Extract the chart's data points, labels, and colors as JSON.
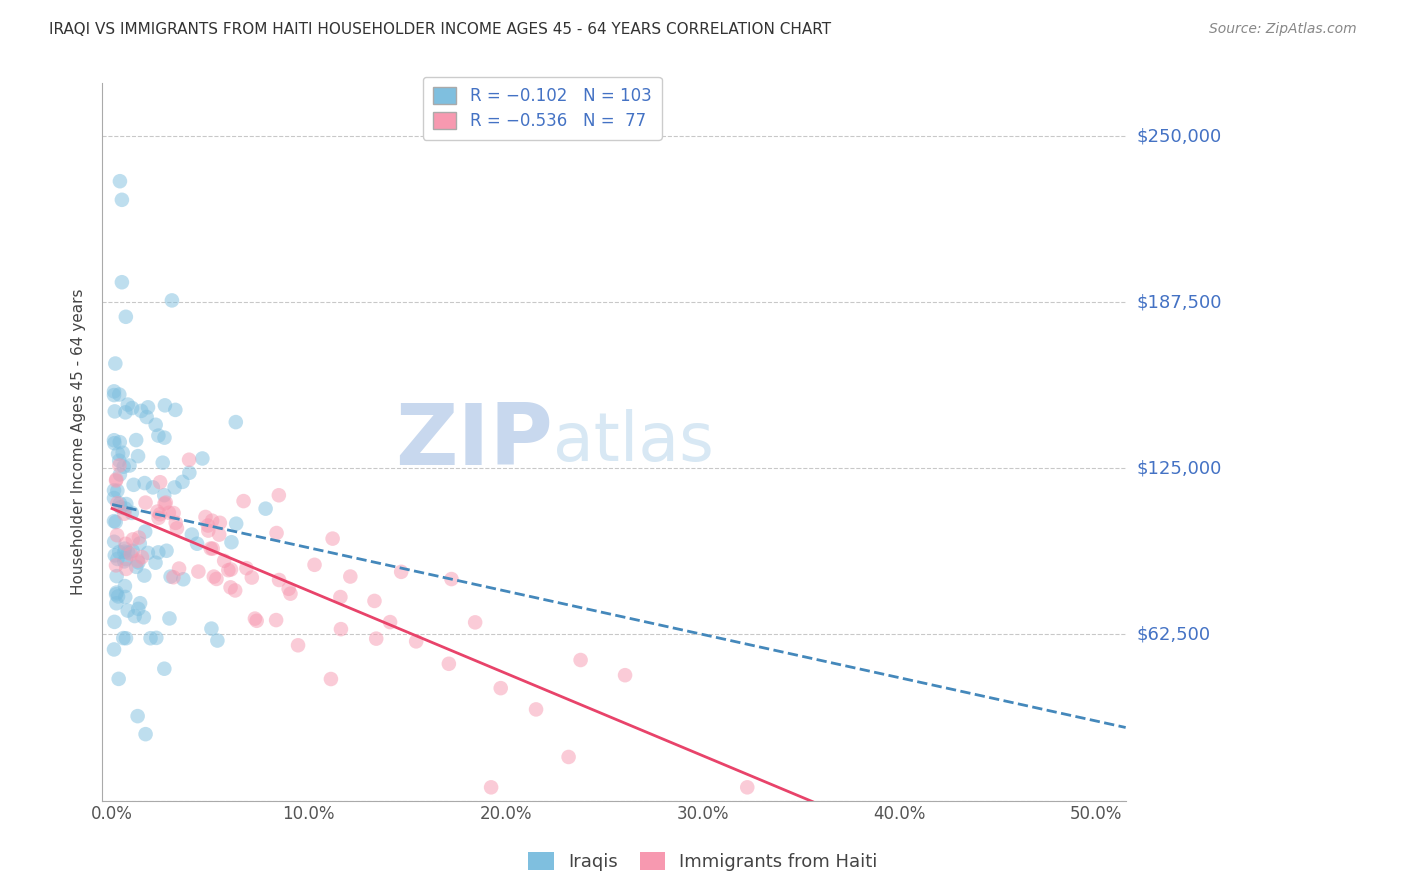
{
  "title": "IRAQI VS IMMIGRANTS FROM HAITI HOUSEHOLDER INCOME AGES 45 - 64 YEARS CORRELATION CHART",
  "source": "Source: ZipAtlas.com",
  "ylabel": "Householder Income Ages 45 - 64 years",
  "xlabel_ticks": [
    "0.0%",
    "10.0%",
    "20.0%",
    "30.0%",
    "40.0%",
    "50.0%"
  ],
  "xlabel_vals": [
    0.0,
    0.1,
    0.2,
    0.3,
    0.4,
    0.5
  ],
  "yticks": [
    0,
    62500,
    125000,
    187500,
    250000
  ],
  "ytick_labels": [
    "",
    "$62,500",
    "$125,000",
    "$187,500",
    "$250,000"
  ],
  "ylim": [
    0,
    270000
  ],
  "xlim": [
    -0.005,
    0.515
  ],
  "iraqis_R": -0.102,
  "iraqis_N": 103,
  "haiti_R": -0.536,
  "haiti_N": 77,
  "scatter_alpha": 0.5,
  "dot_size": 110,
  "iraqis_color": "#7fbfdf",
  "haiti_color": "#f799b0",
  "trendline_iraqis_color": "#4488bb",
  "trendline_haiti_color": "#e8436a",
  "background_color": "#ffffff",
  "grid_color": "#bbbbbb",
  "title_color": "#333333",
  "axis_label_color": "#444444",
  "ytick_label_color": "#4472c4",
  "source_color": "#888888",
  "watermark_zip_color": "#c8d8ee",
  "watermark_atlas_color": "#d8e8f4"
}
